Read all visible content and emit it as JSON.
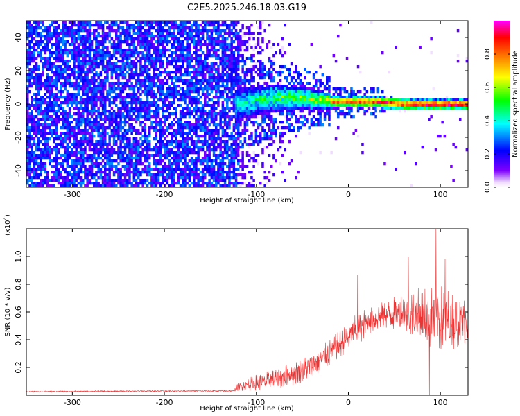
{
  "title": "C2E5.2025.246.18.03.G19",
  "chart_data": [
    {
      "type": "heatmap",
      "name": "spectrogram",
      "xlabel": "Height of straight line (km)",
      "ylabel": "Frequency (Hz)",
      "xlim": [
        -350,
        130
      ],
      "ylim": [
        -50,
        50
      ],
      "xticks": [
        -300,
        -200,
        -100,
        0,
        100
      ],
      "xtick_labels": [
        "-300",
        "-200",
        "-100",
        "0",
        "100"
      ],
      "yticks": [
        -40,
        -20,
        0,
        20,
        40
      ],
      "ytick_labels": [
        "-40",
        "-20",
        "0",
        "20",
        "40"
      ],
      "colorbar": {
        "label": "Normalized spectral amplitude",
        "range": [
          0,
          1
        ],
        "ticks": [
          0.0,
          0.2,
          0.4,
          0.6,
          0.8
        ],
        "tick_labels": [
          "0.0",
          "0.2",
          "0.4",
          "0.6",
          "0.8"
        ],
        "colormap": [
          "#ffffff",
          "#7f00ff",
          "#0000ff",
          "#00ffff",
          "#00ff00",
          "#ffff00",
          "#ff7f00",
          "#ff0000",
          "#ff00ff"
        ]
      },
      "regions": [
        {
          "desc": "broadband noise",
          "x": [
            -350,
            -120
          ],
          "freq": [
            -50,
            50
          ],
          "amplitude": [
            0.05,
            0.15
          ]
        },
        {
          "desc": "fading noise",
          "x": [
            -120,
            -60
          ],
          "freq": [
            -50,
            50
          ],
          "amplitude": [
            0.02,
            0.08
          ]
        },
        {
          "desc": "emerging signal",
          "x": [
            -125,
            -20
          ],
          "freq_center": [
            0,
            6
          ],
          "amplitude": [
            0.2,
            0.5
          ]
        },
        {
          "desc": "strong carrier",
          "x": [
            -20,
            130
          ],
          "freq_center": [
            0,
            2
          ],
          "amplitude": [
            0.6,
            1.0
          ]
        }
      ]
    },
    {
      "type": "line",
      "name": "snr",
      "xlabel": "Height of straight line (km)",
      "ylabel": "SNR (10 * v/v)",
      "multiplier_label": "(x10",
      "multiplier_exp": "4",
      "xlim": [
        -350,
        130
      ],
      "ylim": [
        0,
        1.2
      ],
      "xticks": [
        -300,
        -200,
        -100,
        0,
        100
      ],
      "xtick_labels": [
        "-300",
        "-200",
        "-100",
        "0",
        "100"
      ],
      "yticks": [
        0.2,
        0.4,
        0.6,
        0.8,
        1.0
      ],
      "ytick_labels": [
        "0.2",
        "0.4",
        "0.6",
        "0.8",
        "1.0"
      ],
      "color": "#ee3333",
      "envelope": {
        "x": [
          -350,
          -200,
          -125,
          -120,
          -100,
          -75,
          -50,
          -25,
          0,
          10,
          25,
          40,
          60,
          80,
          100,
          120,
          130
        ],
        "mean": [
          0.025,
          0.03,
          0.03,
          0.06,
          0.09,
          0.12,
          0.18,
          0.28,
          0.42,
          0.48,
          0.55,
          0.58,
          0.6,
          0.56,
          0.55,
          0.54,
          0.55
        ],
        "amp": [
          0.005,
          0.005,
          0.006,
          0.03,
          0.06,
          0.08,
          0.09,
          0.1,
          0.1,
          0.12,
          0.1,
          0.1,
          0.15,
          0.22,
          0.25,
          0.2,
          0.18
        ]
      },
      "spikes": [
        {
          "x": 10,
          "y": 0.87
        },
        {
          "x": 95,
          "y": 1.2
        },
        {
          "x": 105,
          "y": 0.98
        },
        {
          "x": 65,
          "y": 1.0
        },
        {
          "x": 88,
          "y": 0.0
        }
      ]
    }
  ]
}
